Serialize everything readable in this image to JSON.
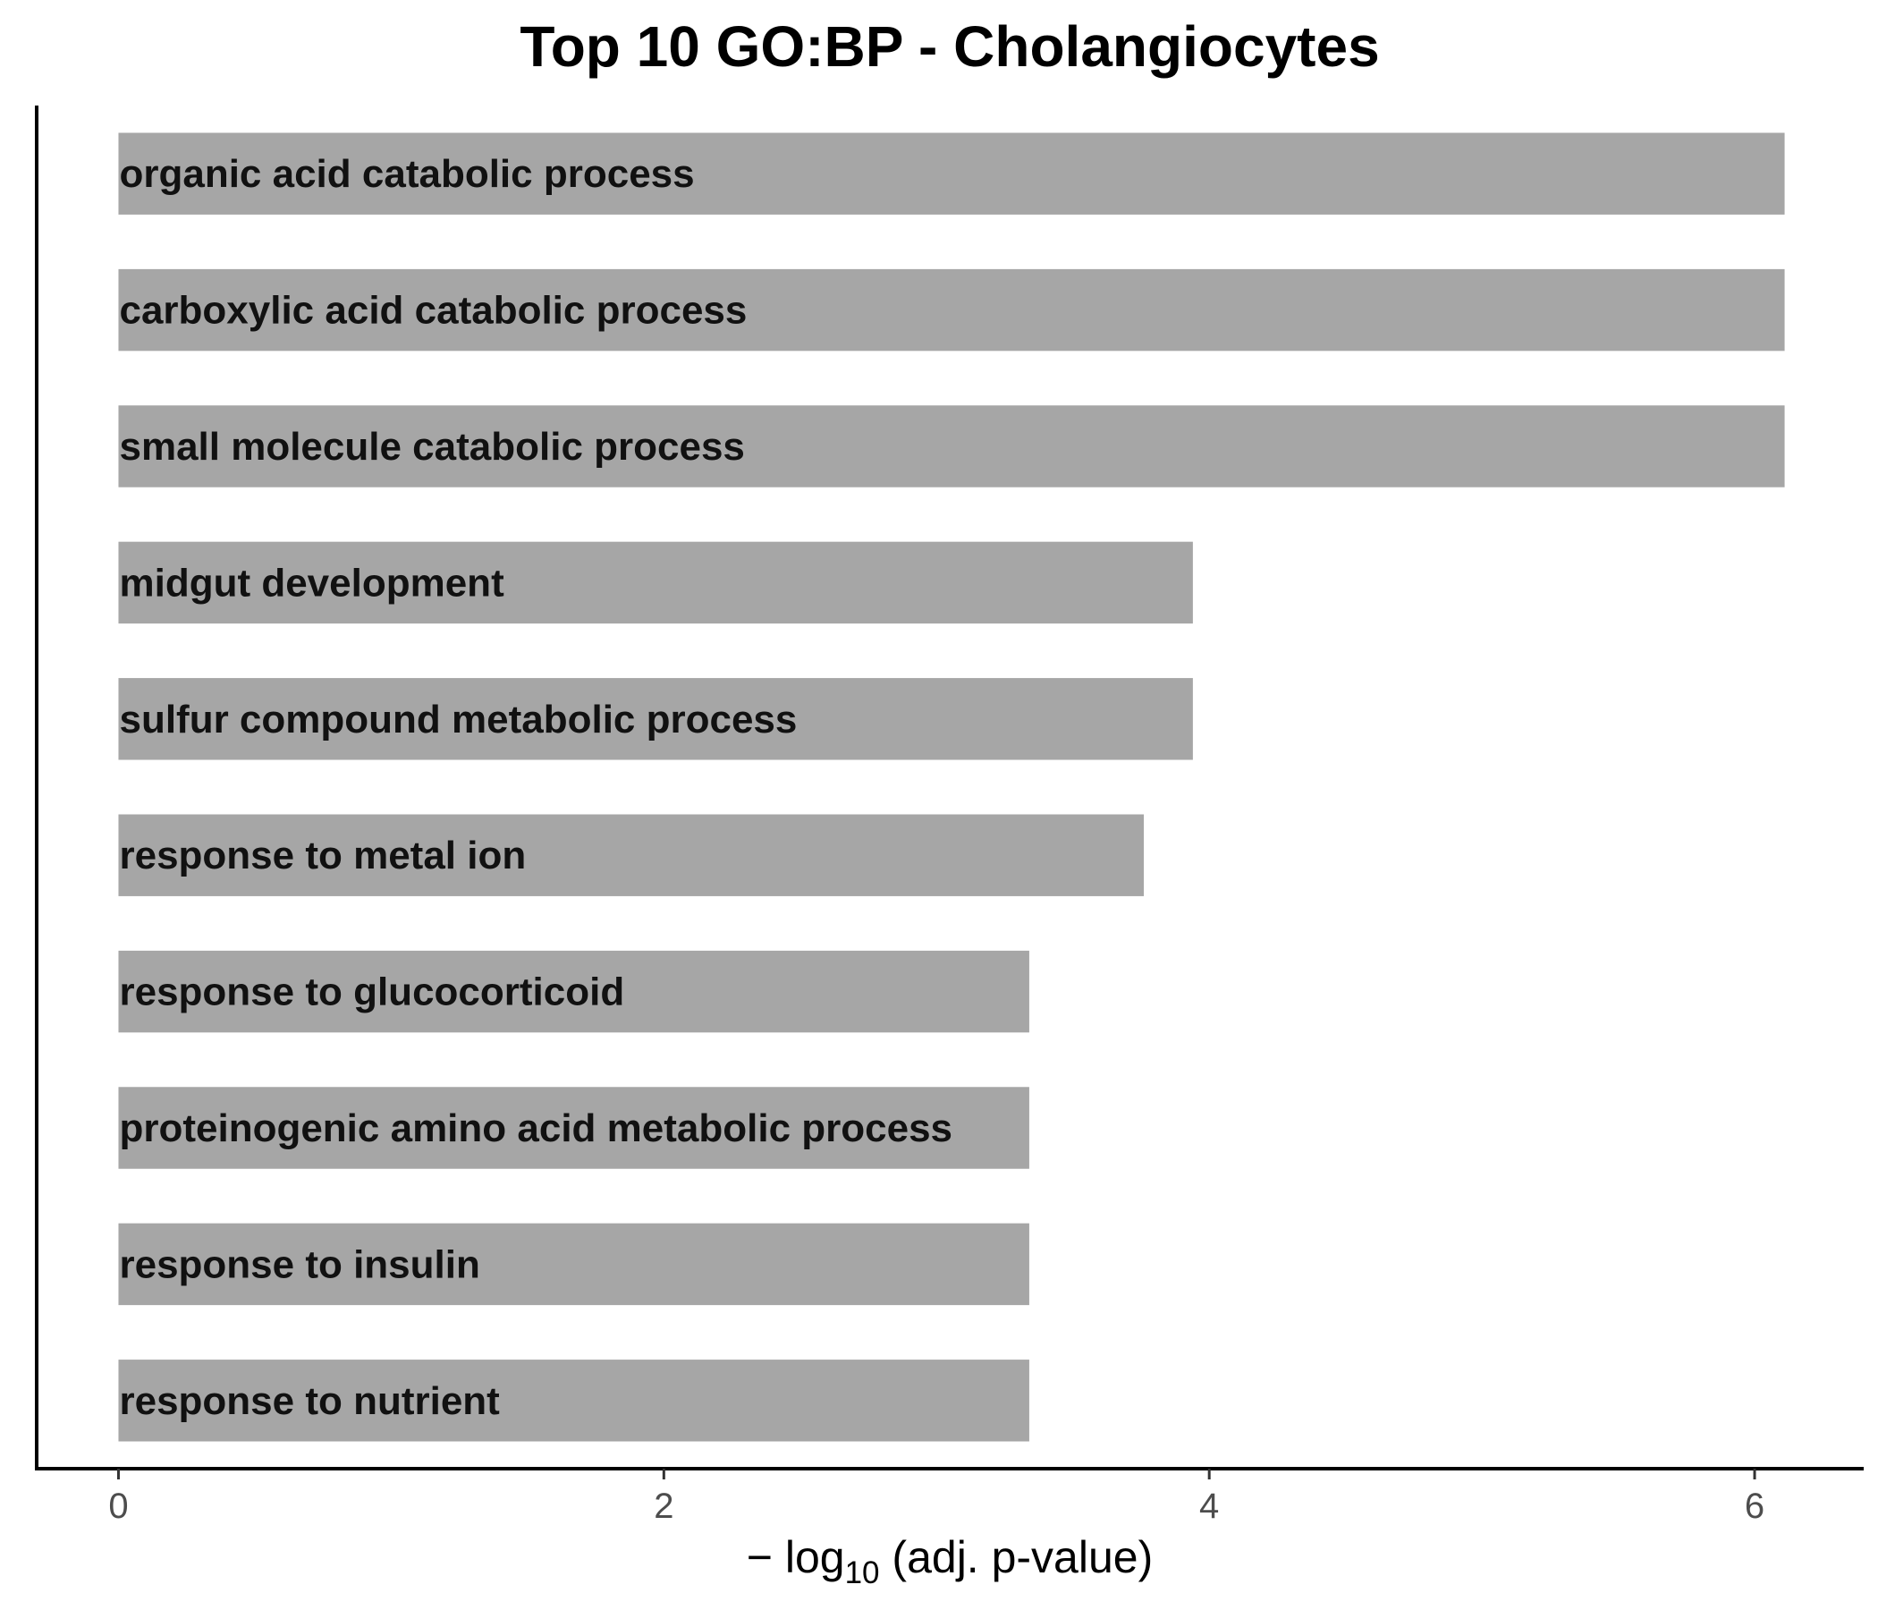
{
  "chart_data": {
    "type": "bar",
    "orientation": "horizontal",
    "title": "Top 10 GO:BP - Cholangiocytes",
    "xlabel": {
      "prefix": "− log",
      "subscript": "10",
      "suffix": " (adj. p-value)"
    },
    "ylabel": "",
    "xlim": [
      -0.3,
      6.4
    ],
    "xticks": [
      "0",
      "2",
      "4",
      "6"
    ],
    "bar_color": "#a6a6a6",
    "grid": false,
    "categories": [
      "organic acid catabolic process",
      "carboxylic acid catabolic process",
      "small molecule catabolic process",
      "midgut development",
      "sulfur compound metabolic process",
      "response to metal ion",
      "response to glucocorticoid",
      "proteinogenic amino acid metabolic process",
      "response to insulin",
      "response to nutrient"
    ],
    "values": [
      6.11,
      6.11,
      6.11,
      3.94,
      3.94,
      3.76,
      3.34,
      3.34,
      3.34,
      3.34
    ]
  }
}
